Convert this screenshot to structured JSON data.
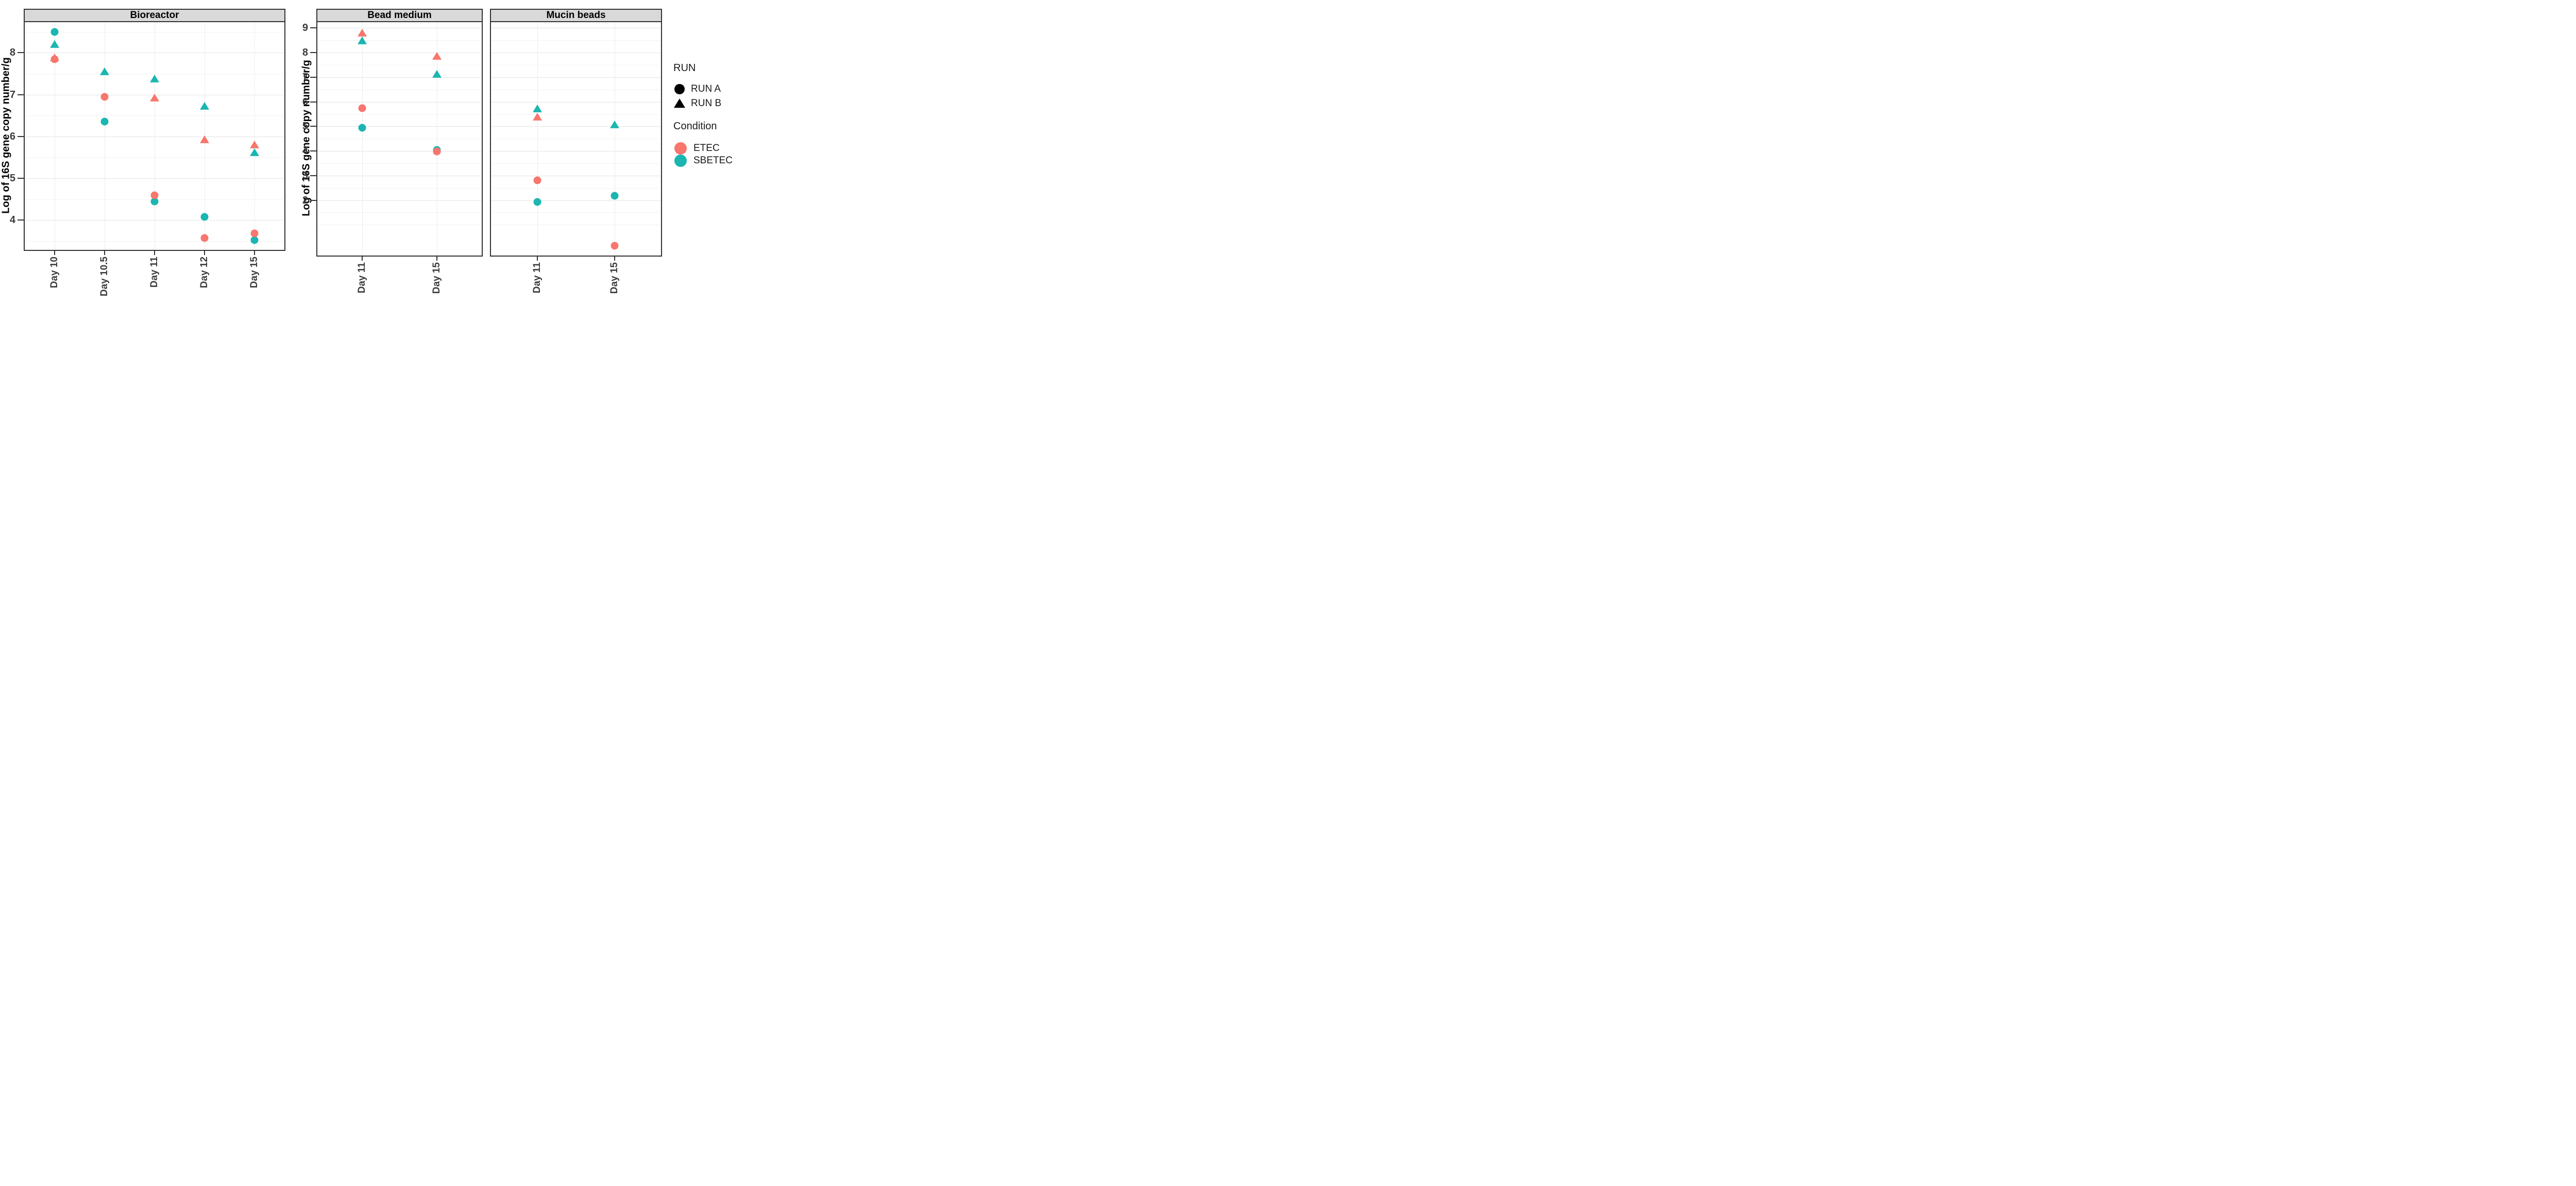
{
  "chart_data": {
    "type": "scatter",
    "ylabel": "Log of 16S gene copy number/g",
    "grid": "major and minor horizontal, vertical at categories",
    "legend_position": "right",
    "legend": {
      "run": {
        "title": "RUN",
        "items": [
          {
            "label": "RUN A",
            "marker": "circle"
          },
          {
            "label": "RUN B",
            "marker": "triangle"
          }
        ]
      },
      "condition": {
        "title": "Condition",
        "items": [
          {
            "label": "ETEC",
            "color": "#F8766D"
          },
          {
            "label": "SBETEC",
            "color": "#1BB6B1"
          }
        ]
      }
    },
    "panels": [
      {
        "title": "Bioreactor",
        "categories": [
          "Day 10",
          "Day 10.5",
          "Day 11",
          "Day 12",
          "Day 15"
        ],
        "ylim": [
          3.29,
          8.73
        ],
        "yticks": [
          4,
          5,
          6,
          7,
          8
        ],
        "yminor": [
          3.5,
          4.5,
          5.5,
          6.5,
          7.5,
          8.5
        ],
        "points": [
          {
            "category": "Day 10",
            "run": "RUN B",
            "condition": "SBETEC",
            "value": 8.2
          },
          {
            "category": "Day 10",
            "run": "RUN A",
            "condition": "SBETEC",
            "value": 8.5
          },
          {
            "category": "Day 10",
            "run": "RUN B",
            "condition": "ETEC",
            "value": 7.88
          },
          {
            "category": "Day 10",
            "run": "RUN A",
            "condition": "ETEC",
            "value": 7.84
          },
          {
            "category": "Day 10.5",
            "run": "RUN B",
            "condition": "SBETEC",
            "value": 7.55
          },
          {
            "category": "Day 10.5",
            "run": "RUN A",
            "condition": "SBETEC",
            "value": 6.35
          },
          {
            "category": "Day 10.5",
            "run": "RUN A",
            "condition": "ETEC",
            "value": 6.95
          },
          {
            "category": "Day 11",
            "run": "RUN B",
            "condition": "SBETEC",
            "value": 7.38
          },
          {
            "category": "Day 11",
            "run": "RUN A",
            "condition": "SBETEC",
            "value": 4.45
          },
          {
            "category": "Day 11",
            "run": "RUN B",
            "condition": "ETEC",
            "value": 6.92
          },
          {
            "category": "Day 11",
            "run": "RUN A",
            "condition": "ETEC",
            "value": 4.6
          },
          {
            "category": "Day 12",
            "run": "RUN B",
            "condition": "SBETEC",
            "value": 6.72
          },
          {
            "category": "Day 12",
            "run": "RUN A",
            "condition": "SBETEC",
            "value": 4.08
          },
          {
            "category": "Day 12",
            "run": "RUN B",
            "condition": "ETEC",
            "value": 5.92
          },
          {
            "category": "Day 12",
            "run": "RUN A",
            "condition": "ETEC",
            "value": 3.57
          },
          {
            "category": "Day 15",
            "run": "RUN B",
            "condition": "SBETEC",
            "value": 5.62
          },
          {
            "category": "Day 15",
            "run": "RUN A",
            "condition": "SBETEC",
            "value": 3.52
          },
          {
            "category": "Day 15",
            "run": "RUN B",
            "condition": "ETEC",
            "value": 5.8
          },
          {
            "category": "Day 15",
            "run": "RUN A",
            "condition": "ETEC",
            "value": 3.68
          }
        ]
      },
      {
        "title": "Bead medium",
        "categories": [
          "Day 11",
          "Day 15"
        ],
        "ylim": [
          -0.25,
          9.24
        ],
        "yticks": [
          2,
          3,
          4,
          5,
          6,
          7,
          8,
          9
        ],
        "yminor": [
          1,
          1.5,
          2.5,
          3.5,
          4.5,
          5.5,
          6.5,
          7.5,
          8.5
        ],
        "points": [
          {
            "category": "Day 11",
            "run": "RUN B",
            "condition": "SBETEC",
            "value": 8.48
          },
          {
            "category": "Day 11",
            "run": "RUN A",
            "condition": "SBETEC",
            "value": 4.95
          },
          {
            "category": "Day 11",
            "run": "RUN B",
            "condition": "ETEC",
            "value": 8.8
          },
          {
            "category": "Day 11",
            "run": "RUN A",
            "condition": "ETEC",
            "value": 5.75
          },
          {
            "category": "Day 15",
            "run": "RUN B",
            "condition": "SBETEC",
            "value": 7.12
          },
          {
            "category": "Day 15",
            "run": "RUN A",
            "condition": "SBETEC",
            "value": 4.05
          },
          {
            "category": "Day 15",
            "run": "RUN B",
            "condition": "ETEC",
            "value": 7.85
          },
          {
            "category": "Day 15",
            "run": "RUN A",
            "condition": "ETEC",
            "value": 3.98
          }
        ]
      },
      {
        "title": "Mucin beads",
        "categories": [
          "Day 11",
          "Day 15"
        ],
        "ylim": [
          -0.25,
          9.24
        ],
        "yticks": [],
        "yminor": [
          1,
          1.5,
          2.5,
          3.5,
          4.5,
          5.5,
          6.5,
          7.5,
          8.5
        ],
        "yticks_grid": [
          2,
          3,
          4,
          5,
          6,
          7,
          8,
          9
        ],
        "points": [
          {
            "category": "Day 11",
            "run": "RUN B",
            "condition": "SBETEC",
            "value": 5.72
          },
          {
            "category": "Day 11",
            "run": "RUN A",
            "condition": "SBETEC",
            "value": 1.93
          },
          {
            "category": "Day 11",
            "run": "RUN B",
            "condition": "ETEC",
            "value": 5.38
          },
          {
            "category": "Day 11",
            "run": "RUN A",
            "condition": "ETEC",
            "value": 2.8
          },
          {
            "category": "Day 15",
            "run": "RUN B",
            "condition": "SBETEC",
            "value": 5.08
          },
          {
            "category": "Day 15",
            "run": "RUN A",
            "condition": "SBETEC",
            "value": 2.18
          },
          {
            "category": "Day 15",
            "run": "RUN A",
            "condition": "ETEC",
            "value": 0.15
          }
        ]
      }
    ]
  }
}
